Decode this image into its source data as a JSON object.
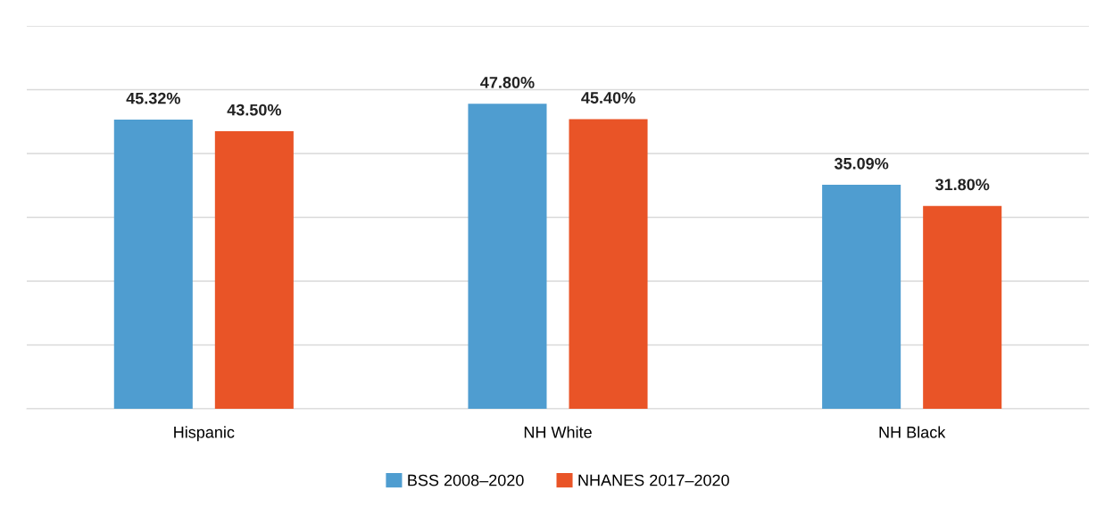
{
  "chart_data": {
    "type": "bar",
    "categories": [
      "Hispanic",
      "NH White",
      "NH Black"
    ],
    "series": [
      {
        "name": "BSS 2008–2020",
        "color": "#4f9dd0",
        "values": [
          45.32,
          47.8,
          35.09
        ],
        "value_labels": [
          "45.32%",
          "47.80%",
          "35.09%"
        ]
      },
      {
        "name": "NHANES 2017–2020",
        "color": "#e95427",
        "values": [
          43.5,
          45.4,
          31.8
        ],
        "value_labels": [
          "43.50%",
          "45.40%",
          "31.80%"
        ]
      }
    ],
    "ylim": [
      0,
      60
    ],
    "yticks": [
      {
        "value": 0,
        "label": null
      },
      {
        "value": 10,
        "label": null
      },
      {
        "value": 20,
        "label": null
      },
      {
        "value": 30,
        "label": null
      },
      {
        "value": 40,
        "label": null
      },
      {
        "value": 50,
        "label": null
      },
      {
        "value": 60,
        "label": null
      }
    ],
    "tick_labels": "x",
    "grid": "y",
    "legend": "bottom"
  }
}
